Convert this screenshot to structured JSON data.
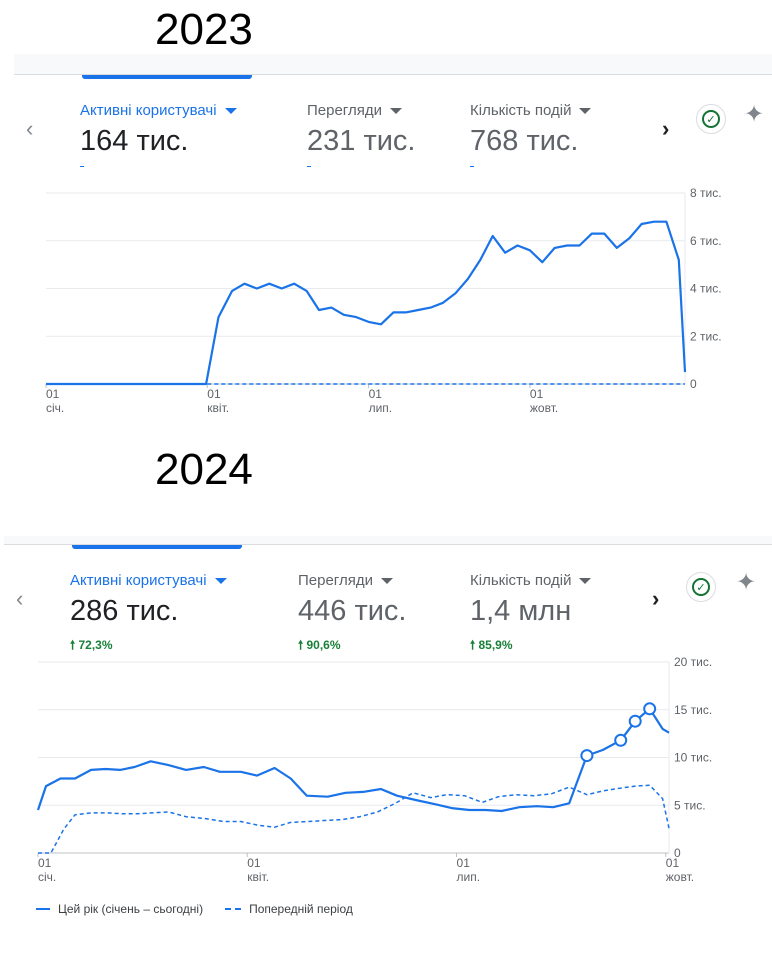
{
  "header_2023": "2023",
  "header_2024": "2024",
  "colors": {
    "accent": "#1a73e8",
    "positive": "#188038",
    "grid": "#e8eaed",
    "text": "#3c4043"
  },
  "icons": {
    "prev": "chevron-left-icon",
    "next": "chevron-right-icon",
    "status": "check-circle-icon",
    "insights": "sparkle-icon"
  },
  "panel_2023": {
    "metrics": [
      {
        "label": "Активні користувачі",
        "value": "164 тис."
      },
      {
        "label": "Перегляди",
        "value": "231 тис."
      },
      {
        "label": "Кількість подій",
        "value": "768 тис."
      }
    ]
  },
  "panel_2024": {
    "metrics": [
      {
        "label": "Активні користувачі",
        "value": "286 тис.",
        "delta": "72,3%"
      },
      {
        "label": "Перегляди",
        "value": "446 тис.",
        "delta": "90,6%"
      },
      {
        "label": "Кількість подій",
        "value": "1,4 млн",
        "delta": "85,9%"
      }
    ],
    "legend": {
      "current": "Цей рік (січень – сьогодні)",
      "previous": "Попередній період"
    }
  },
  "chart_data": [
    {
      "type": "line",
      "y_ticks": [
        "0",
        "2 тис.",
        "4 тис.",
        "6 тис.",
        "8 тис."
      ],
      "y_values": [
        0,
        2000,
        4000,
        6000,
        8000
      ],
      "ylim": [
        0,
        8000
      ],
      "x_ticks": [
        [
          "01",
          "січ."
        ],
        [
          "01",
          "квіт."
        ],
        [
          "01",
          "лип."
        ],
        [
          "01",
          "жовт."
        ]
      ],
      "x_tick_weeks": [
        0,
        13,
        26,
        39
      ],
      "x_range": [
        0,
        51.5
      ],
      "series": [
        {
          "style": "solid",
          "values": [
            0,
            0,
            0,
            0,
            0,
            0,
            0,
            0,
            0,
            0,
            0,
            0,
            0,
            0,
            2800,
            3900,
            4200,
            4000,
            4200,
            4000,
            4200,
            3900,
            3100,
            3200,
            2900,
            2800,
            2600,
            2500,
            3000,
            3000,
            3100,
            3200,
            3400,
            3800,
            4400,
            5200,
            6200,
            5500,
            5800,
            5600,
            5100,
            5700,
            5800,
            5800,
            6300,
            6300,
            5700,
            6100,
            6700,
            6800,
            6800,
            5200,
            500
          ],
          "x": [
            0,
            1,
            2,
            3,
            4,
            5,
            6,
            7,
            8,
            9,
            10,
            11,
            12,
            12.9,
            13.9,
            15,
            16,
            17,
            18,
            19,
            20,
            21,
            22,
            23,
            24,
            25,
            26,
            27,
            28,
            29,
            30,
            31,
            32,
            33,
            34,
            35,
            36,
            37,
            38,
            39,
            40,
            41,
            42,
            43,
            44,
            45,
            46,
            47,
            48,
            49,
            50,
            51,
            51.5
          ]
        },
        {
          "style": "dashed",
          "values": [
            0,
            0,
            0,
            0,
            0,
            0,
            0,
            0,
            0,
            0,
            0,
            0,
            0,
            0,
            0,
            0,
            0,
            0,
            0,
            0,
            0,
            0,
            0,
            0,
            0,
            0,
            0,
            0,
            0,
            0,
            0,
            0,
            0,
            0,
            0,
            0,
            0,
            0,
            0,
            0,
            0,
            0,
            0,
            0,
            0,
            0,
            0,
            0,
            0,
            0,
            0,
            0
          ],
          "x_from": 13,
          "x_to": 51.5
        }
      ]
    },
    {
      "type": "line",
      "y_ticks": [
        "0",
        "5 тис.",
        "10 тис.",
        "15 тис.",
        "20 тис."
      ],
      "y_values": [
        0,
        5000,
        10000,
        15000,
        20000
      ],
      "ylim": [
        0,
        20000
      ],
      "x_ticks": [
        [
          "01",
          "січ."
        ],
        [
          "01",
          "квіт."
        ],
        [
          "01",
          "лип."
        ],
        [
          "01",
          "жовт."
        ]
      ],
      "x_tick_weeks": [
        0,
        13,
        26,
        39
      ],
      "x_range": [
        0,
        39.2
      ],
      "series": [
        {
          "name": "Цей рік (січень – сьогодні)",
          "style": "solid",
          "x": [
            0,
            0.5,
            1.4,
            2.3,
            3.3,
            4.2,
            5.1,
            6,
            7,
            8.1,
            9.2,
            10.3,
            11.3,
            12.6,
            13.6,
            14.7,
            15.7,
            16.7,
            18,
            19.1,
            20.2,
            21.3,
            22.3,
            23.6,
            24.7,
            25.7,
            26.8,
            27.8,
            28.8,
            29.9,
            31,
            32,
            33,
            34.1,
            35.1,
            36.2,
            37.1,
            38,
            38.8,
            39.2
          ],
          "values": [
            4500,
            7000,
            7800,
            7800,
            8700,
            8800,
            8700,
            9000,
            9600,
            9200,
            8700,
            9000,
            8500,
            8500,
            8100,
            8900,
            7800,
            6000,
            5900,
            6300,
            6400,
            6700,
            6000,
            5500,
            5100,
            4700,
            4500,
            4500,
            4400,
            4800,
            4900,
            4800,
            5200,
            10200,
            10800,
            11800,
            13800,
            15100,
            13000,
            12600
          ],
          "markers": [
            10200,
            11800,
            13800,
            15100
          ]
        },
        {
          "name": "Попередній період",
          "style": "dashed",
          "x": [
            0,
            0.8,
            1.6,
            2.3,
            3.3,
            4.3,
            5.3,
            6.1,
            7.1,
            8.1,
            9.2,
            10.4,
            11.5,
            12.6,
            13.7,
            14.7,
            15.7,
            16.8,
            17.8,
            18.9,
            20,
            21.1,
            22.2,
            23.3,
            24.4,
            25.4,
            26.5,
            27.6,
            28.6,
            29.7,
            30.8,
            31.9,
            33,
            34.1,
            35.1,
            36.2,
            37.1,
            38,
            38.8,
            39.2
          ],
          "values": [
            0,
            0,
            2500,
            4000,
            4200,
            4200,
            4100,
            4100,
            4200,
            4300,
            3800,
            3600,
            3300,
            3300,
            2900,
            2700,
            3200,
            3300,
            3400,
            3500,
            3800,
            4300,
            5200,
            6300,
            5800,
            6100,
            6000,
            5300,
            5900,
            6100,
            6000,
            6200,
            6900,
            6100,
            6500,
            6800,
            7000,
            7100,
            5700,
            2600
          ]
        }
      ]
    }
  ]
}
